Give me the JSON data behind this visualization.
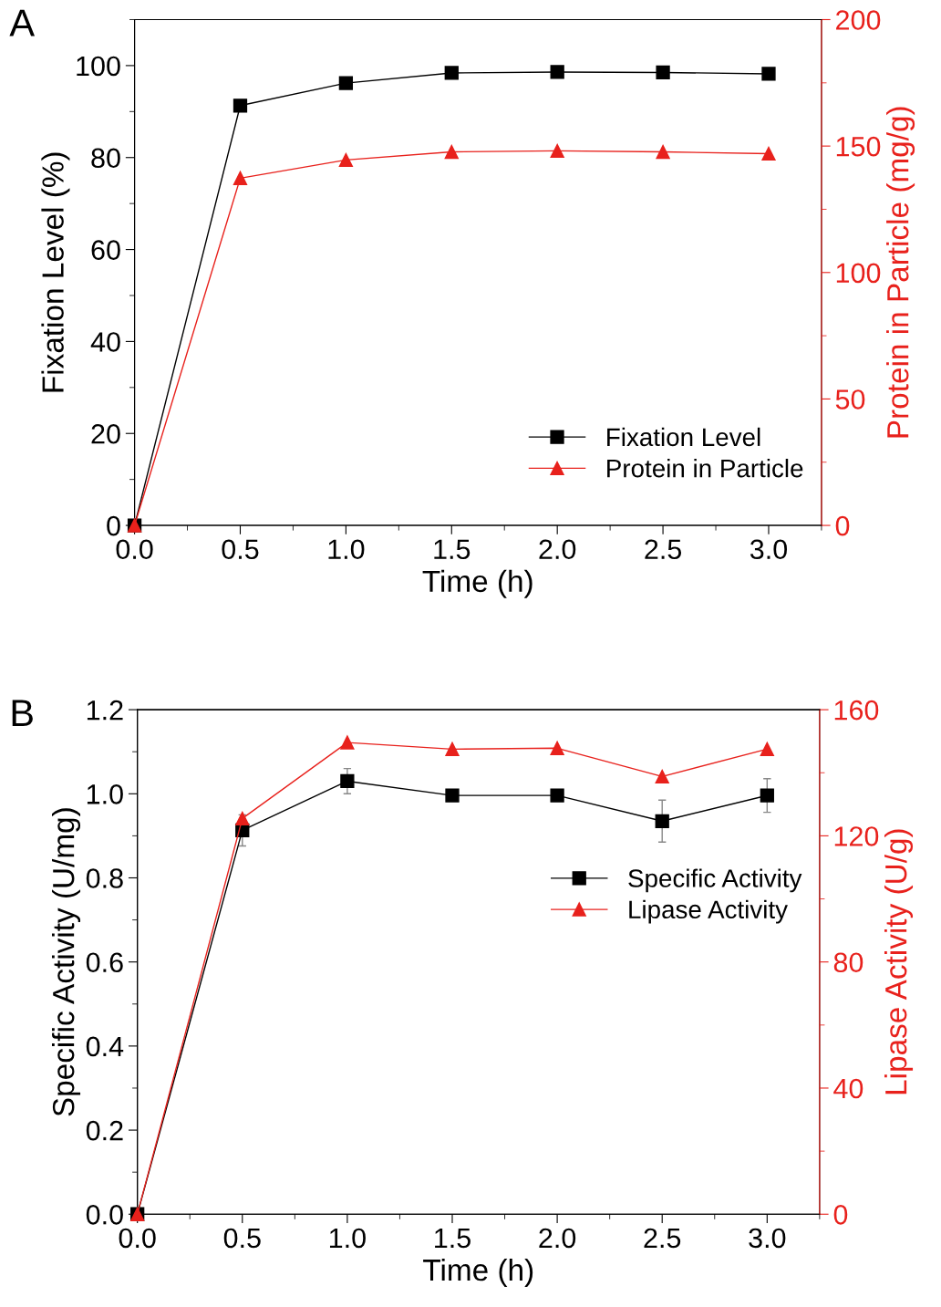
{
  "chart_data": [
    {
      "type": "line",
      "annotations": [
        "A"
      ],
      "xlabel": "Time (h)",
      "ylabel": "Fixation Level (%)",
      "y2label": "Protein in Particle (mg/g)",
      "x": [
        0,
        0.5,
        1.0,
        1.5,
        2.0,
        2.5,
        3.0
      ],
      "xlim": [
        0,
        3.25
      ],
      "xticks": [
        {
          "value": 0,
          "label": "0.0"
        },
        {
          "value": 0.5,
          "label": "0.5"
        },
        {
          "value": 1,
          "label": "1.0"
        },
        {
          "value": 1.5,
          "label": "1.5"
        },
        {
          "value": 2,
          "label": "2.0"
        },
        {
          "value": 2.5,
          "label": "2.5"
        },
        {
          "value": 3,
          "label": "3.0"
        }
      ],
      "ylim": [
        0,
        110
      ],
      "yticks": [
        0,
        20,
        40,
        60,
        80,
        100
      ],
      "y2lim": [
        0,
        200
      ],
      "y2ticks": [
        0,
        50,
        100,
        150,
        200
      ],
      "legend": "lower right",
      "grid": false,
      "series": [
        {
          "name": "Fixation Level",
          "color": "#000000",
          "marker": "square",
          "values": [
            0,
            91.3,
            96.2,
            98.4,
            98.6,
            98.5,
            98.2
          ]
        },
        {
          "name": "Protein in Particle",
          "color": "#e8211c",
          "marker": "triangle",
          "axis": "y2",
          "values": [
            0,
            137.3,
            144.5,
            147.7,
            148.1,
            147.7,
            147.0
          ]
        }
      ]
    },
    {
      "type": "line",
      "annotations": [
        "B"
      ],
      "xlabel": "Time (h)",
      "ylabel": "Specific Activity (U/mg)",
      "y2label": "Lipase Activity (U/g)",
      "x": [
        0,
        0.5,
        1.0,
        1.5,
        2.0,
        2.5,
        3.0
      ],
      "xlim": [
        0,
        3.25
      ],
      "xticks": [
        {
          "value": 0,
          "label": "0.0"
        },
        {
          "value": 0.5,
          "label": "0.5"
        },
        {
          "value": 1,
          "label": "1.0"
        },
        {
          "value": 1.5,
          "label": "1.5"
        },
        {
          "value": 2,
          "label": "2.0"
        },
        {
          "value": 2.5,
          "label": "2.5"
        },
        {
          "value": 3,
          "label": "3.0"
        }
      ],
      "ylim": [
        0,
        1.2
      ],
      "yticks": [
        {
          "value": 0,
          "label": "0.0"
        },
        {
          "value": 0.2,
          "label": "0.2"
        },
        {
          "value": 0.4,
          "label": "0.4"
        },
        {
          "value": 0.6,
          "label": "0.6"
        },
        {
          "value": 0.8,
          "label": "0.8"
        },
        {
          "value": 1.0,
          "label": "1.0"
        },
        {
          "value": 1.2,
          "label": "1.2"
        }
      ],
      "y2lim": [
        0,
        160
      ],
      "y2ticks": [
        0,
        40,
        80,
        120,
        160
      ],
      "legend": "upper right",
      "grid": false,
      "series": [
        {
          "name": "Specific Activity",
          "color": "#000000",
          "marker": "square",
          "values": [
            0,
            0.913,
            1.03,
            0.996,
            0.996,
            0.935,
            0.996
          ],
          "errors": [
            null,
            0.037,
            0.03,
            0.012,
            0.012,
            0.05,
            0.04
          ]
        },
        {
          "name": "Lipase Activity",
          "color": "#e8211c",
          "marker": "triangle",
          "axis": "y2",
          "values": [
            0,
            125.5,
            149.6,
            147.5,
            147.8,
            138.8,
            147.5
          ]
        }
      ]
    }
  ]
}
